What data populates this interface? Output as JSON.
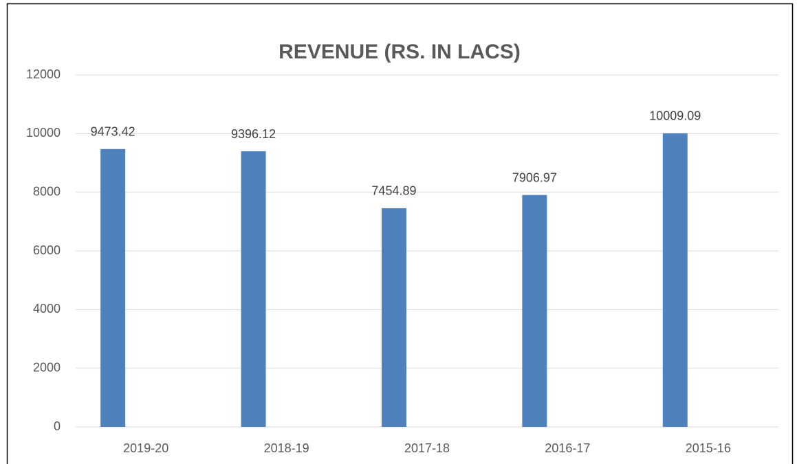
{
  "chart_data": {
    "type": "bar",
    "title": "REVENUE (RS. IN LACS)",
    "categories": [
      "2019-20",
      "2018-19",
      "2017-18",
      "2016-17",
      "2015-16"
    ],
    "values": [
      9473.42,
      9396.12,
      7454.89,
      7906.97,
      10009.09
    ],
    "color": "#4f81bd",
    "ylim": [
      0,
      12000
    ],
    "yticks": [
      0,
      2000,
      4000,
      6000,
      8000,
      10000,
      12000
    ],
    "grid": true,
    "data_labels": true
  }
}
